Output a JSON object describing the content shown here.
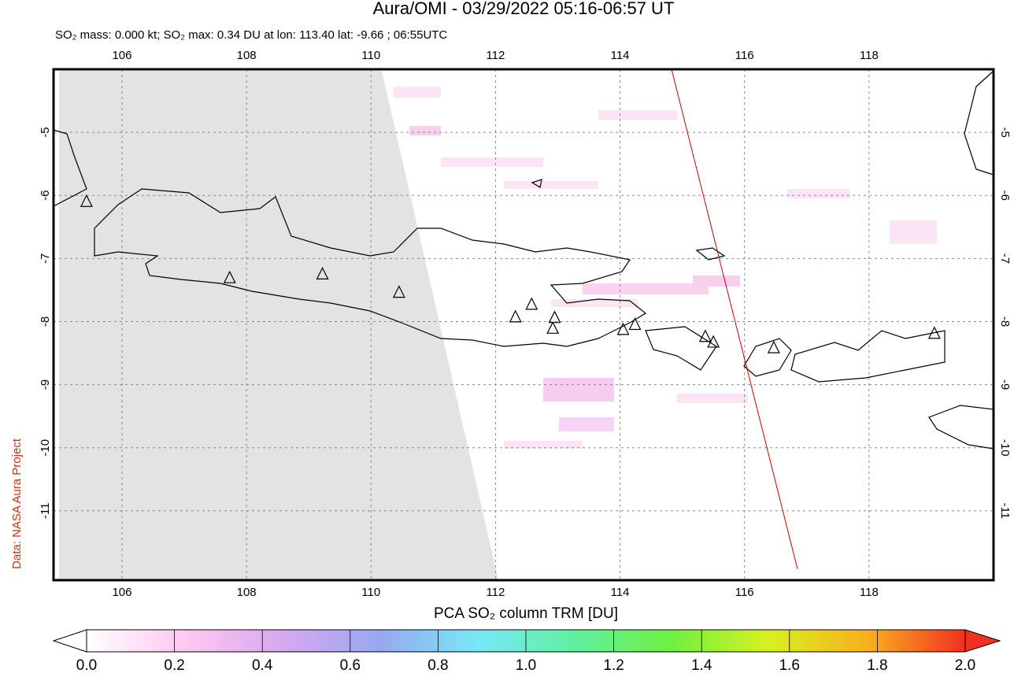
{
  "chart_data": {
    "type": "map",
    "title": "Aura/OMI - 03/29/2022 05:16-06:57 UT",
    "subtitle": "SO₂ mass: 0.000 kt; SO₂ max: 0.34 DU at lon: 113.40 lat: -9.66 ; 06:55UTC",
    "credit": "Data: NASA Aura Project",
    "xlim": [
      104.9,
      120.0
    ],
    "ylim": [
      -12.1,
      -4.0
    ],
    "xticks": [
      106,
      108,
      110,
      112,
      114,
      116,
      118
    ],
    "yticks": [
      -5,
      -6,
      -7,
      -8,
      -9,
      -10,
      -11
    ],
    "grid": true,
    "volcanoes": {
      "lon": [
        105.43,
        107.73,
        109.22,
        110.45,
        112.32,
        112.58,
        112.95,
        112.92,
        114.05,
        114.24,
        115.37,
        115.5,
        116.47,
        119.05
      ],
      "lat": [
        -6.1,
        -7.31,
        -7.25,
        -7.54,
        -7.93,
        -7.73,
        -7.94,
        -8.11,
        -8.13,
        -8.05,
        -8.24,
        -8.33,
        -8.42,
        -8.19
      ]
    },
    "orbit_track": {
      "lon": [
        114.83,
        116.85
      ],
      "lat": [
        -4.01,
        -11.92
      ],
      "color": "#cc0000"
    },
    "colorbar": {
      "title": "PCA SO₂ column TRM [DU]",
      "lim": [
        0,
        2
      ],
      "ticks": [
        {
          "value": 0,
          "label": "0.0"
        },
        0.2,
        0.4,
        0.6,
        0.8,
        {
          "value": 1,
          "label": "1.0"
        },
        1.2,
        1.4,
        1.6,
        1.8,
        {
          "value": 2,
          "label": "2.0"
        }
      ],
      "colors": [
        "#ffffff",
        "#ffc8f0",
        "#d8a8f0",
        "#98a8f0",
        "#78e8f8",
        "#60f0a0",
        "#70f040",
        "#d8f020",
        "#f8b020",
        "#f03020"
      ]
    }
  }
}
